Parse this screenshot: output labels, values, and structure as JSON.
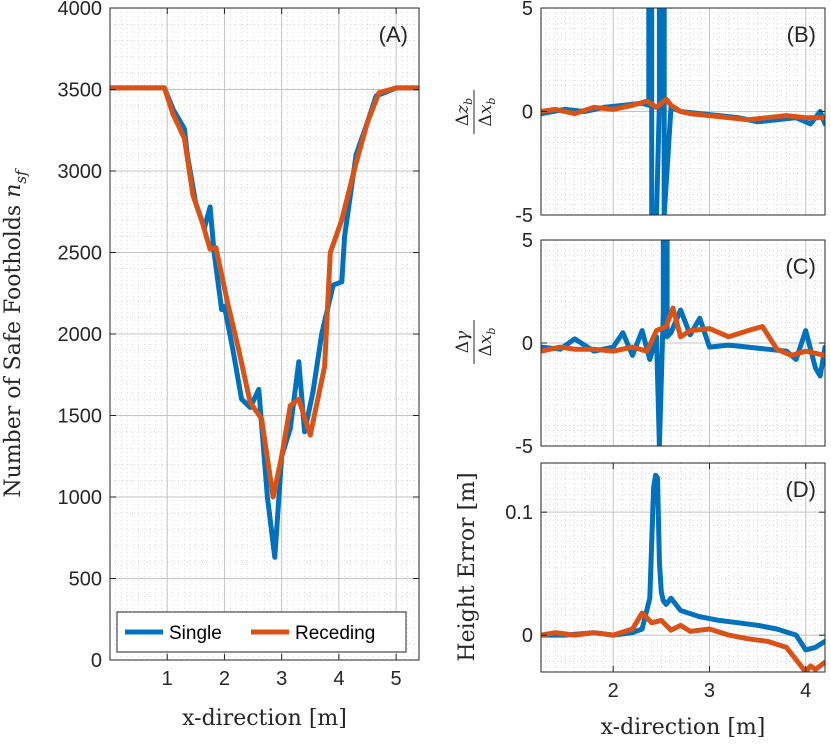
{
  "colors": {
    "single": "#0072BD",
    "receding": "#D95319",
    "axis": "#262626",
    "grid": "#b0b0b0"
  },
  "legend": {
    "entries": [
      "Single",
      "Receding"
    ],
    "placement": "bottom-center"
  },
  "chart_data": [
    {
      "id": "A",
      "type": "line",
      "panel_label": "(A)",
      "xlabel": "x-direction [m]",
      "ylabel": "Number of Safe Footholds",
      "ylabel_symbol": "n_sf",
      "xlim": [
        0,
        5.4
      ],
      "ylim": [
        0,
        4000
      ],
      "xticks": [
        1,
        2,
        3,
        4,
        5
      ],
      "yticks": [
        0,
        500,
        1000,
        1500,
        2000,
        2500,
        3000,
        3500,
        4000
      ],
      "grid": true,
      "series": [
        {
          "name": "Single",
          "x": [
            0,
            0.95,
            1.1,
            1.3,
            1.35,
            1.5,
            1.65,
            1.75,
            1.82,
            1.95,
            2.0,
            2.15,
            2.3,
            2.45,
            2.6,
            2.75,
            2.88,
            3.0,
            3.15,
            3.3,
            3.4,
            3.55,
            3.7,
            3.9,
            4.05,
            4.1,
            4.3,
            4.5,
            4.65,
            5.0,
            5.4
          ],
          "y": [
            3510,
            3510,
            3380,
            3260,
            3100,
            2800,
            2650,
            2780,
            2500,
            2150,
            2170,
            1900,
            1600,
            1550,
            1660,
            1000,
            630,
            1250,
            1420,
            1830,
            1400,
            1650,
            2000,
            2300,
            2320,
            2600,
            3100,
            3300,
            3460,
            3510,
            3510
          ]
        },
        {
          "name": "Receding",
          "x": [
            0,
            0.95,
            1.1,
            1.3,
            1.45,
            1.6,
            1.75,
            1.85,
            2.05,
            2.25,
            2.45,
            2.65,
            2.85,
            3.0,
            3.15,
            3.3,
            3.5,
            3.75,
            3.85,
            4.05,
            4.3,
            4.5,
            4.7,
            5.0,
            5.4
          ],
          "y": [
            3510,
            3510,
            3350,
            3200,
            2850,
            2700,
            2520,
            2530,
            2200,
            1900,
            1580,
            1480,
            1000,
            1250,
            1560,
            1600,
            1380,
            1800,
            2500,
            2700,
            3050,
            3300,
            3480,
            3510,
            3510
          ]
        }
      ]
    },
    {
      "id": "B",
      "type": "line",
      "panel_label": "(B)",
      "ylabel_symbol": "Δz_b/Δx_b",
      "xlim": [
        1.25,
        4.2
      ],
      "ylim": [
        -5,
        5
      ],
      "yticks": [
        -5,
        0,
        5
      ],
      "grid": true,
      "series": [
        {
          "name": "Single",
          "x": [
            1.25,
            1.5,
            1.7,
            1.9,
            2.1,
            2.3,
            2.37,
            2.37,
            2.4,
            2.4,
            2.45,
            2.48,
            2.48,
            2.53,
            2.53,
            2.6,
            2.7,
            2.9,
            3.1,
            3.3,
            3.5,
            3.7,
            3.9,
            4.05,
            4.15,
            4.2
          ],
          "y": [
            -0.1,
            0.1,
            0.0,
            0.2,
            0.3,
            0.4,
            0.3,
            5,
            5,
            -5,
            -5,
            0.4,
            5,
            5,
            -5,
            0.2,
            0.0,
            -0.1,
            -0.2,
            -0.3,
            -0.5,
            -0.4,
            -0.3,
            -0.6,
            0.0,
            -0.6
          ]
        },
        {
          "name": "Receding",
          "x": [
            1.25,
            1.4,
            1.6,
            1.8,
            2.0,
            2.2,
            2.35,
            2.45,
            2.55,
            2.6,
            2.7,
            2.8,
            3.0,
            3.2,
            3.4,
            3.6,
            3.8,
            4.0,
            4.2
          ],
          "y": [
            0.0,
            0.1,
            -0.1,
            0.2,
            0.1,
            0.3,
            0.5,
            0.2,
            0.6,
            0.3,
            0.0,
            -0.1,
            -0.2,
            -0.3,
            -0.4,
            -0.3,
            -0.2,
            -0.3,
            -0.3
          ]
        }
      ]
    },
    {
      "id": "C",
      "type": "line",
      "panel_label": "(C)",
      "ylabel_symbol": "Δγ/Δx_b",
      "xlim": [
        1.25,
        4.2
      ],
      "ylim": [
        -5,
        5
      ],
      "yticks": [
        -5,
        0,
        5
      ],
      "grid": true,
      "series": [
        {
          "name": "Single",
          "x": [
            1.25,
            1.45,
            1.6,
            1.8,
            2.0,
            2.1,
            2.2,
            2.3,
            2.38,
            2.45,
            2.48,
            2.48,
            2.52,
            2.52,
            2.56,
            2.56,
            2.6,
            2.7,
            2.8,
            2.9,
            3.0,
            3.2,
            3.4,
            3.6,
            3.8,
            3.9,
            4.0,
            4.1,
            4.15,
            4.2
          ],
          "y": [
            -0.2,
            -0.3,
            0.2,
            -0.4,
            -0.2,
            0.5,
            -0.6,
            0.6,
            -0.8,
            0.3,
            -5,
            -5,
            1.5,
            5,
            5,
            0.3,
            0.5,
            1.6,
            0.4,
            1.2,
            -0.2,
            -0.1,
            -0.2,
            -0.3,
            -0.4,
            -0.8,
            0.6,
            -1.2,
            -1.6,
            -0.2
          ]
        },
        {
          "name": "Receding",
          "x": [
            1.25,
            1.45,
            1.6,
            1.8,
            2.0,
            2.2,
            2.35,
            2.45,
            2.55,
            2.62,
            2.7,
            2.8,
            3.0,
            3.2,
            3.4,
            3.55,
            3.7,
            3.85,
            4.0,
            4.2
          ],
          "y": [
            -0.4,
            -0.2,
            -0.3,
            -0.3,
            -0.4,
            -0.2,
            -0.4,
            0.6,
            0.8,
            1.7,
            0.3,
            0.6,
            0.7,
            0.3,
            0.6,
            0.8,
            -0.3,
            -0.6,
            -0.4,
            -0.6
          ]
        }
      ]
    },
    {
      "id": "D",
      "type": "line",
      "panel_label": "(D)",
      "xlabel": "x-direction [m]",
      "ylabel": "Height  Error [m]",
      "xlim": [
        1.25,
        4.2
      ],
      "ylim": [
        -0.03,
        0.14
      ],
      "xticks": [
        2,
        3,
        4
      ],
      "yticks": [
        0,
        0.1
      ],
      "grid": true,
      "series": [
        {
          "name": "Single",
          "x": [
            1.25,
            1.5,
            1.8,
            2.0,
            2.2,
            2.3,
            2.38,
            2.42,
            2.44,
            2.46,
            2.48,
            2.5,
            2.52,
            2.55,
            2.6,
            2.7,
            2.9,
            3.1,
            3.3,
            3.5,
            3.7,
            3.9,
            4.0,
            4.1,
            4.2
          ],
          "y": [
            0,
            0,
            0.002,
            0,
            0.002,
            0.005,
            0.03,
            0.12,
            0.13,
            0.128,
            0.06,
            0.035,
            0.028,
            0.025,
            0.03,
            0.02,
            0.015,
            0.012,
            0.01,
            0.008,
            0.005,
            0.0,
            -0.012,
            -0.01,
            -0.005
          ]
        },
        {
          "name": "Receding",
          "x": [
            1.25,
            1.4,
            1.6,
            1.8,
            2.0,
            2.2,
            2.3,
            2.4,
            2.5,
            2.6,
            2.7,
            2.8,
            3.0,
            3.2,
            3.4,
            3.6,
            3.8,
            3.9,
            4.0,
            4.05,
            4.1,
            4.2
          ],
          "y": [
            0,
            0.002,
            0,
            0.002,
            0,
            0.005,
            0.018,
            0.01,
            0.012,
            0.004,
            0.008,
            0.003,
            0.005,
            0.0,
            -0.003,
            -0.005,
            -0.01,
            -0.02,
            -0.03,
            -0.025,
            -0.028,
            -0.022
          ]
        }
      ]
    }
  ]
}
